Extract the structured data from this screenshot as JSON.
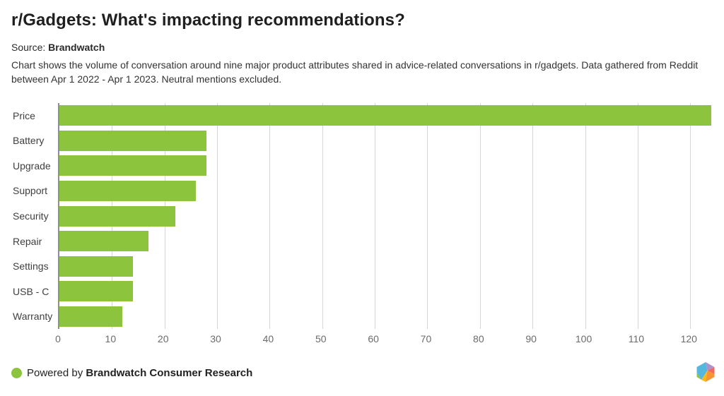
{
  "header": {
    "title": "r/Gadgets: What's impacting recommendations?",
    "source_prefix": "Source: ",
    "source_name": "Brandwatch",
    "description": "Chart shows the volume of conversation around nine major product attributes shared in advice-related conversations in r/gadgets. Data gathered from Reddit between Apr 1 2022 - Apr 1 2023. Neutral mentions excluded."
  },
  "chart_data": {
    "type": "bar",
    "orientation": "horizontal",
    "title": "r/Gadgets: What's impacting recommendations?",
    "categories": [
      "Price",
      "Battery",
      "Upgrade",
      "Support",
      "Security",
      "Repair",
      "Settings",
      "USB - C",
      "Warranty"
    ],
    "values": [
      124,
      28,
      28,
      26,
      22,
      17,
      14,
      14,
      12
    ],
    "xlabel": "",
    "ylabel": "",
    "xlim": [
      0,
      124
    ],
    "x_ticks": [
      0,
      10,
      20,
      30,
      40,
      50,
      60,
      70,
      80,
      90,
      100,
      110,
      120
    ],
    "grid": true,
    "legend": "none",
    "bar_color": "#8CC43E",
    "gridline_color": "#d6d6d6",
    "axis_line_color": "#8f8f8f"
  },
  "footer": {
    "powered_prefix": "Powered by ",
    "powered_bold": "Brandwatch Consumer Research",
    "dot_color": "#8CC43E"
  },
  "logo": {
    "name": "brandwatch-hexagon-logo",
    "facet_colors": {
      "blue": "#55b7dd",
      "purple": "#ad93cb",
      "red": "#f4695f",
      "orange": "#f79433",
      "yellow": "#fdb913",
      "green": "#8cc63f"
    }
  }
}
